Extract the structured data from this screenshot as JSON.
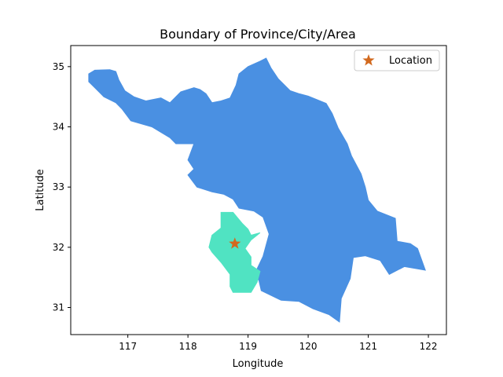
{
  "chart_data": {
    "type": "map",
    "title": "Boundary of Province/City/Area",
    "xlabel": "Longitude",
    "ylabel": "Latitude",
    "xlim": [
      116.05,
      122.3
    ],
    "ylim": [
      30.55,
      35.35
    ],
    "xticks": [
      117,
      118,
      119,
      120,
      121,
      122
    ],
    "yticks": [
      31,
      32,
      33,
      34,
      35
    ],
    "grid": false,
    "legend_position": "top-right",
    "legend": [
      {
        "label": "Location",
        "marker": "star",
        "color": "#d2691e"
      }
    ],
    "regions": [
      {
        "fill": "#4a90e2",
        "coords": [
          [
            116.35,
            34.88
          ],
          [
            116.45,
            34.94
          ],
          [
            116.7,
            34.95
          ],
          [
            116.8,
            34.92
          ],
          [
            116.85,
            34.78
          ],
          [
            116.95,
            34.6
          ],
          [
            117.1,
            34.5
          ],
          [
            117.3,
            34.43
          ],
          [
            117.55,
            34.48
          ],
          [
            117.7,
            34.4
          ],
          [
            117.88,
            34.58
          ],
          [
            118.1,
            34.65
          ],
          [
            118.2,
            34.62
          ],
          [
            118.3,
            34.55
          ],
          [
            118.4,
            34.4
          ],
          [
            118.55,
            34.43
          ],
          [
            118.7,
            34.48
          ],
          [
            118.8,
            34.69
          ],
          [
            118.85,
            34.88
          ],
          [
            119.0,
            35.0
          ],
          [
            119.2,
            35.09
          ],
          [
            119.3,
            35.14
          ],
          [
            119.38,
            34.98
          ],
          [
            119.5,
            34.8
          ],
          [
            119.7,
            34.6
          ],
          [
            119.85,
            34.55
          ],
          [
            120.0,
            34.51
          ],
          [
            120.3,
            34.39
          ],
          [
            120.4,
            34.22
          ],
          [
            120.5,
            33.98
          ],
          [
            120.65,
            33.72
          ],
          [
            120.72,
            33.52
          ],
          [
            120.88,
            33.22
          ],
          [
            120.95,
            33.0
          ],
          [
            121.0,
            32.78
          ],
          [
            121.15,
            32.6
          ],
          [
            121.45,
            32.48
          ],
          [
            121.48,
            32.1
          ],
          [
            121.7,
            32.06
          ],
          [
            121.82,
            31.98
          ],
          [
            121.95,
            31.62
          ],
          [
            121.6,
            31.68
          ],
          [
            121.35,
            31.55
          ],
          [
            121.2,
            31.78
          ],
          [
            120.95,
            31.86
          ],
          [
            120.75,
            31.83
          ],
          [
            120.7,
            31.48
          ],
          [
            120.55,
            31.15
          ],
          [
            120.52,
            30.76
          ],
          [
            120.35,
            30.88
          ],
          [
            120.08,
            30.98
          ],
          [
            119.85,
            31.1
          ],
          [
            119.55,
            31.12
          ],
          [
            119.22,
            31.28
          ],
          [
            119.18,
            31.45
          ],
          [
            119.12,
            31.58
          ],
          [
            119.25,
            31.85
          ],
          [
            119.35,
            32.22
          ],
          [
            119.25,
            32.5
          ],
          [
            119.1,
            32.6
          ],
          [
            118.85,
            32.65
          ],
          [
            118.75,
            32.8
          ],
          [
            118.6,
            32.88
          ],
          [
            118.4,
            32.92
          ],
          [
            118.15,
            33.0
          ],
          [
            118.0,
            33.2
          ],
          [
            118.1,
            33.3
          ],
          [
            118.0,
            33.45
          ],
          [
            118.1,
            33.72
          ],
          [
            117.8,
            33.72
          ],
          [
            117.7,
            33.82
          ],
          [
            117.4,
            34.0
          ],
          [
            117.05,
            34.1
          ],
          [
            116.9,
            34.3
          ],
          [
            116.8,
            34.4
          ],
          [
            116.6,
            34.5
          ],
          [
            116.45,
            34.65
          ],
          [
            116.35,
            34.75
          ]
        ]
      },
      {
        "fill": "#50e3c2",
        "coords": [
          [
            118.55,
            32.58
          ],
          [
            118.75,
            32.58
          ],
          [
            118.9,
            32.4
          ],
          [
            119.0,
            32.3
          ],
          [
            119.05,
            32.2
          ],
          [
            119.2,
            32.24
          ],
          [
            119.05,
            32.12
          ],
          [
            118.95,
            31.98
          ],
          [
            119.05,
            31.84
          ],
          [
            119.05,
            31.7
          ],
          [
            119.2,
            31.6
          ],
          [
            119.15,
            31.42
          ],
          [
            119.05,
            31.25
          ],
          [
            118.75,
            31.25
          ],
          [
            118.7,
            31.35
          ],
          [
            118.7,
            31.55
          ],
          [
            118.55,
            31.75
          ],
          [
            118.4,
            31.92
          ],
          [
            118.35,
            32.0
          ],
          [
            118.4,
            32.2
          ],
          [
            118.55,
            32.32
          ]
        ]
      }
    ],
    "location": {
      "lon": 118.78,
      "lat": 32.06
    }
  }
}
